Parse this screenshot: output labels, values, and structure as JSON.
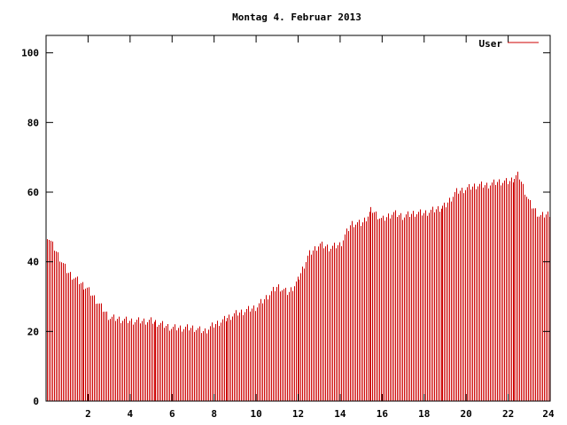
{
  "chart_data": {
    "type": "bar",
    "title": "Montag 4. Februar 2013",
    "xlabel": "",
    "ylabel": "",
    "xlim": [
      0,
      24
    ],
    "ylim": [
      0,
      105
    ],
    "xticks": [
      2,
      4,
      6,
      8,
      10,
      12,
      14,
      16,
      18,
      20,
      22,
      24
    ],
    "yticks": [
      0,
      20,
      40,
      60,
      80,
      100
    ],
    "grid": false,
    "legend_position": "top-right",
    "series": [
      {
        "name": "User",
        "color": "#cc0000",
        "points": [
          [
            0.0,
            48
          ],
          [
            1.0,
            37
          ],
          [
            2.0,
            32
          ],
          [
            3.0,
            24
          ],
          [
            4.0,
            23
          ],
          [
            5.0,
            23
          ],
          [
            6.0,
            21
          ],
          [
            7.0,
            21
          ],
          [
            7.5,
            20
          ],
          [
            8.0,
            22
          ],
          [
            9.0,
            25
          ],
          [
            10.0,
            27
          ],
          [
            11.0,
            33
          ],
          [
            11.5,
            31
          ],
          [
            12.0,
            35
          ],
          [
            12.5,
            42
          ],
          [
            13.0,
            45
          ],
          [
            13.5,
            44
          ],
          [
            14.0,
            45
          ],
          [
            14.5,
            51
          ],
          [
            15.0,
            51
          ],
          [
            15.5,
            55
          ],
          [
            16.0,
            52
          ],
          [
            16.5,
            54
          ],
          [
            17.0,
            53
          ],
          [
            17.5,
            54
          ],
          [
            18.0,
            54
          ],
          [
            18.5,
            55
          ],
          [
            19.0,
            56
          ],
          [
            19.5,
            60
          ],
          [
            20.0,
            61
          ],
          [
            20.5,
            62
          ],
          [
            21.0,
            62
          ],
          [
            21.5,
            63
          ],
          [
            22.0,
            63
          ],
          [
            22.5,
            65
          ],
          [
            23.0,
            57
          ],
          [
            23.5,
            53
          ],
          [
            24.0,
            54
          ]
        ]
      }
    ]
  }
}
